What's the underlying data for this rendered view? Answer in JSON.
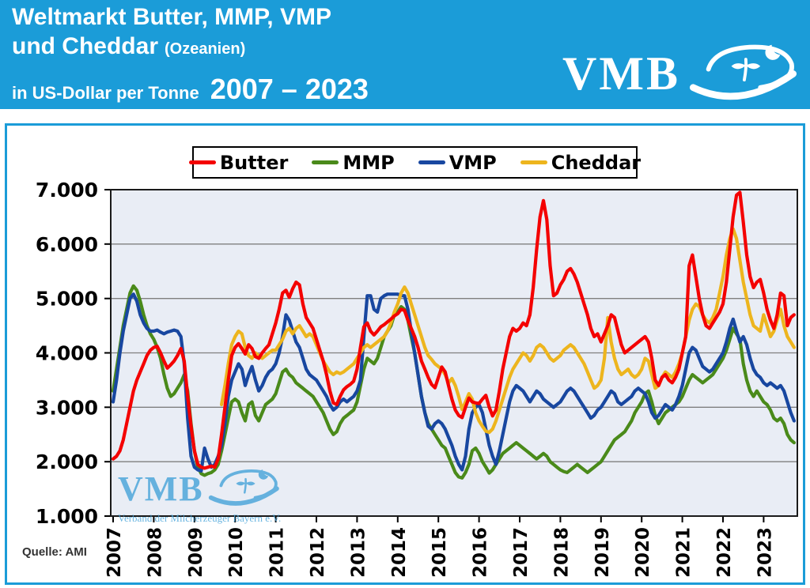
{
  "header": {
    "title_line1": "Weltmarkt Butter, MMP, VMP",
    "title_line2": "und Cheddar",
    "title_line2_note": "(Ozeanien)",
    "subtitle": "in US-Dollar per Tonne",
    "period": "2007 – 2023",
    "logo_text": "VMB",
    "banner_color": "#1B9CD8"
  },
  "watermark": {
    "logo_text": "VMB",
    "caption": "Verband der Milcherzeuger Bayern e.V.",
    "color": "#45A3D9"
  },
  "source_note": "Quelle: AMI",
  "chart_data": {
    "type": "line",
    "title": "Weltmarkt Butter, MMP, VMP und Cheddar (Ozeanien)",
    "ylabel": "US-Dollar per Tonne",
    "ylim": [
      1000,
      7000
    ],
    "grid": true,
    "legend_position": "top",
    "plot_bg": "#E9EDF5",
    "grid_color": "#7f7f7f",
    "frequency": "monthly",
    "x_start": {
      "year": 2007,
      "month": 1
    },
    "x_end": {
      "year": 2023,
      "month": 10
    },
    "y_ticks": [
      1000,
      2000,
      3000,
      4000,
      5000,
      6000,
      7000
    ],
    "y_tick_labels": [
      "1.000",
      "2.000",
      "3.000",
      "4.000",
      "5.000",
      "6.000",
      "7.000"
    ],
    "x_tick_labels": [
      "2007",
      "2008",
      "2009",
      "2010",
      "2011",
      "2012",
      "2013",
      "2014",
      "2015",
      "2016",
      "2017",
      "2018",
      "2019",
      "2020",
      "2021",
      "2022",
      "2023"
    ],
    "series": [
      {
        "name": "Butter",
        "color": "#F40000",
        "values": [
          2050,
          2100,
          2200,
          2400,
          2700,
          3000,
          3300,
          3500,
          3650,
          3800,
          3950,
          4050,
          4100,
          4120,
          4000,
          3850,
          3720,
          3780,
          3850,
          3950,
          4080,
          3850,
          3200,
          2650,
          2200,
          1950,
          1900,
          1880,
          1900,
          1920,
          1900,
          2050,
          2500,
          3000,
          3500,
          3950,
          4100,
          4170,
          4080,
          3980,
          4150,
          4080,
          3930,
          3900,
          4000,
          4080,
          4150,
          4350,
          4550,
          4800,
          5100,
          5150,
          5020,
          5180,
          5300,
          5250,
          4900,
          4650,
          4550,
          4450,
          4250,
          4050,
          3850,
          3600,
          3300,
          3080,
          3050,
          3200,
          3320,
          3380,
          3420,
          3480,
          3700,
          4100,
          4480,
          4550,
          4400,
          4330,
          4400,
          4480,
          4520,
          4570,
          4620,
          4680,
          4720,
          4800,
          4780,
          4600,
          4450,
          4300,
          4100,
          3850,
          3700,
          3550,
          3420,
          3360,
          3550,
          3740,
          3650,
          3400,
          3150,
          2950,
          2850,
          2810,
          3000,
          3170,
          3100,
          3080,
          3070,
          3150,
          3220,
          3000,
          2840,
          2950,
          3300,
          3700,
          4000,
          4300,
          4450,
          4400,
          4450,
          4550,
          4500,
          4700,
          5200,
          5900,
          6500,
          6800,
          6450,
          5600,
          5050,
          5100,
          5250,
          5350,
          5500,
          5550,
          5450,
          5300,
          5100,
          4900,
          4700,
          4450,
          4300,
          4350,
          4200,
          4350,
          4500,
          4700,
          4650,
          4400,
          4150,
          4000,
          4050,
          4100,
          4150,
          4200,
          4250,
          4300,
          4200,
          3900,
          3500,
          3400,
          3550,
          3600,
          3500,
          3450,
          3550,
          3700,
          4000,
          4300,
          5600,
          5800,
          5400,
          5000,
          4700,
          4500,
          4450,
          4550,
          4650,
          4750,
          4900,
          5300,
          5900,
          6500,
          6900,
          6950,
          6400,
          5800,
          5400,
          5200,
          5300,
          5350,
          5100,
          4800,
          4600,
          4450,
          4700,
          5100,
          5050,
          4500,
          4650,
          4700
        ]
      },
      {
        "name": "MMP",
        "color": "#4A8A1A",
        "values": [
          3300,
          3700,
          4100,
          4500,
          4800,
          5100,
          5230,
          5150,
          4950,
          4700,
          4500,
          4350,
          4250,
          4100,
          3900,
          3600,
          3350,
          3200,
          3250,
          3350,
          3450,
          3600,
          3300,
          2700,
          2200,
          1900,
          1780,
          1750,
          1780,
          1800,
          1850,
          1950,
          2200,
          2500,
          2800,
          3100,
          3150,
          3100,
          2900,
          2750,
          3050,
          3100,
          2850,
          2750,
          2900,
          3050,
          3100,
          3150,
          3250,
          3450,
          3650,
          3700,
          3600,
          3550,
          3450,
          3400,
          3350,
          3300,
          3250,
          3200,
          3100,
          3000,
          2900,
          2750,
          2600,
          2500,
          2550,
          2700,
          2800,
          2850,
          2900,
          2950,
          3100,
          3400,
          3700,
          3900,
          3850,
          3800,
          3900,
          4100,
          4300,
          4400,
          4500,
          4700,
          4750,
          4850,
          4800,
          4600,
          4300,
          4000,
          3600,
          3200,
          2900,
          2700,
          2600,
          2500,
          2400,
          2300,
          2250,
          2100,
          1950,
          1800,
          1720,
          1700,
          1800,
          1950,
          2200,
          2250,
          2150,
          2000,
          1900,
          1790,
          1850,
          1950,
          2050,
          2150,
          2200,
          2250,
          2300,
          2350,
          2300,
          2250,
          2200,
          2150,
          2100,
          2050,
          2100,
          2150,
          2100,
          2000,
          1950,
          1900,
          1850,
          1820,
          1800,
          1850,
          1900,
          1950,
          1900,
          1850,
          1800,
          1850,
          1900,
          1950,
          2000,
          2100,
          2200,
          2300,
          2400,
          2450,
          2500,
          2550,
          2650,
          2750,
          2900,
          3000,
          3100,
          3250,
          3300,
          3100,
          2850,
          2700,
          2800,
          2900,
          2950,
          3000,
          3050,
          3100,
          3200,
          3350,
          3500,
          3600,
          3550,
          3500,
          3450,
          3500,
          3550,
          3600,
          3700,
          3800,
          3900,
          4050,
          4250,
          4450,
          4350,
          4250,
          3800,
          3500,
          3300,
          3200,
          3300,
          3200,
          3100,
          3050,
          2950,
          2800,
          2750,
          2800,
          2700,
          2500,
          2400,
          2350
        ]
      },
      {
        "name": "VMP",
        "color": "#1847A0",
        "values": [
          3100,
          3500,
          4000,
          4400,
          4700,
          5000,
          5080,
          4950,
          4700,
          4550,
          4450,
          4400,
          4400,
          4420,
          4380,
          4350,
          4380,
          4400,
          4420,
          4400,
          4300,
          3800,
          2800,
          2100,
          1900,
          1850,
          1830,
          2250,
          2050,
          1900,
          1950,
          2100,
          2300,
          2700,
          3200,
          3500,
          3650,
          3800,
          3700,
          3400,
          3600,
          3750,
          3500,
          3300,
          3400,
          3550,
          3650,
          3700,
          3800,
          4000,
          4300,
          4700,
          4600,
          4400,
          4200,
          4100,
          3900,
          3700,
          3600,
          3550,
          3500,
          3400,
          3300,
          3200,
          3050,
          2950,
          3000,
          3100,
          3150,
          3100,
          3150,
          3200,
          3300,
          3500,
          4300,
          5050,
          5050,
          4800,
          4750,
          5000,
          5050,
          5080,
          5080,
          5080,
          5080,
          5050,
          5050,
          4800,
          4400,
          4000,
          3600,
          3200,
          2900,
          2650,
          2600,
          2700,
          2750,
          2700,
          2600,
          2450,
          2300,
          2100,
          1950,
          1850,
          2100,
          2600,
          2900,
          3000,
          3050,
          2900,
          2600,
          2300,
          2100,
          1950,
          2200,
          2500,
          2800,
          3100,
          3300,
          3400,
          3350,
          3300,
          3200,
          3100,
          3200,
          3300,
          3250,
          3150,
          3100,
          3050,
          3000,
          3050,
          3100,
          3200,
          3300,
          3350,
          3300,
          3200,
          3100,
          3000,
          2900,
          2800,
          2850,
          2950,
          3000,
          3100,
          3200,
          3300,
          3250,
          3100,
          3050,
          3100,
          3150,
          3200,
          3300,
          3350,
          3300,
          3250,
          3100,
          2900,
          2800,
          2850,
          2950,
          3050,
          3000,
          2950,
          3050,
          3200,
          3400,
          3700,
          4000,
          4100,
          4050,
          3900,
          3750,
          3700,
          3650,
          3700,
          3800,
          3900,
          4000,
          4200,
          4450,
          4620,
          4400,
          4200,
          4300,
          4150,
          3900,
          3700,
          3600,
          3550,
          3450,
          3400,
          3450,
          3400,
          3350,
          3400,
          3300,
          3100,
          2900,
          2750
        ]
      },
      {
        "name": "Cheddar",
        "color": "#EDB51E",
        "values": [
          null,
          null,
          null,
          null,
          null,
          null,
          null,
          null,
          null,
          null,
          null,
          null,
          null,
          null,
          null,
          null,
          null,
          null,
          null,
          null,
          null,
          null,
          null,
          null,
          null,
          null,
          null,
          null,
          null,
          null,
          null,
          null,
          3050,
          3400,
          3800,
          4150,
          4300,
          4400,
          4350,
          4100,
          3950,
          3900,
          4000,
          3950,
          3900,
          3950,
          4000,
          4050,
          4050,
          4150,
          4250,
          4400,
          4450,
          4350,
          4450,
          4500,
          4400,
          4300,
          4350,
          4300,
          4150,
          4000,
          3850,
          3750,
          3650,
          3600,
          3650,
          3620,
          3650,
          3700,
          3750,
          3800,
          3900,
          4000,
          4100,
          4150,
          4100,
          4150,
          4200,
          4250,
          4300,
          4400,
          4550,
          4750,
          4900,
          5100,
          5210,
          5100,
          4900,
          4700,
          4500,
          4300,
          4100,
          3950,
          3880,
          3800,
          3750,
          3700,
          3600,
          3450,
          3530,
          3400,
          3200,
          2960,
          3100,
          3250,
          3150,
          2900,
          2750,
          2650,
          2560,
          2540,
          2600,
          2750,
          2950,
          3150,
          3350,
          3550,
          3700,
          3800,
          3900,
          4000,
          3950,
          3850,
          3950,
          4100,
          4150,
          4100,
          4000,
          3900,
          3850,
          3900,
          3950,
          4050,
          4100,
          4150,
          4100,
          4000,
          3900,
          3800,
          3650,
          3500,
          3350,
          3400,
          3500,
          3900,
          4650,
          4200,
          3900,
          3700,
          3600,
          3650,
          3700,
          3600,
          3550,
          3600,
          3700,
          3900,
          3850,
          3600,
          3350,
          3400,
          3550,
          3650,
          3600,
          3550,
          3650,
          3800,
          4000,
          4300,
          4600,
          4800,
          4900,
          4850,
          4700,
          4600,
          4550,
          4650,
          4800,
          5100,
          5400,
          5800,
          6100,
          6280,
          6100,
          5700,
          5300,
          5000,
          4700,
          4500,
          4450,
          4400,
          4700,
          4500,
          4300,
          4400,
          4600,
          4800,
          4500,
          4300,
          4200,
          4100
        ]
      }
    ]
  }
}
